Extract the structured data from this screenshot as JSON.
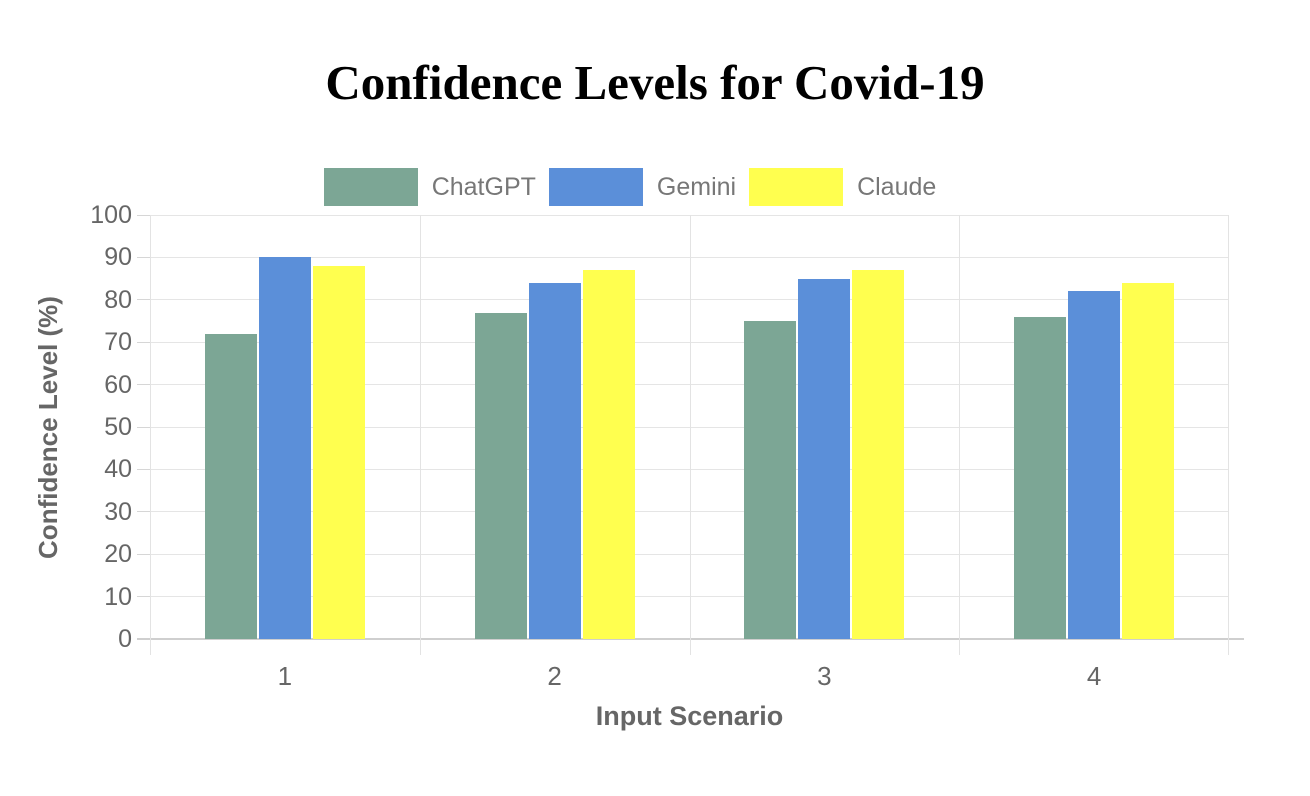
{
  "page": {
    "background": "#ffffff"
  },
  "chart_data": {
    "type": "bar",
    "title": "Confidence Levels for Covid-19",
    "xlabel": "Input Scenario",
    "ylabel": "Confidence Level (%)",
    "categories": [
      "1",
      "2",
      "3",
      "4"
    ],
    "series": [
      {
        "name": "ChatGPT",
        "color": "#7ca695",
        "values": [
          72,
          77,
          75,
          76
        ]
      },
      {
        "name": "Gemini",
        "color": "#5b8fd9",
        "values": [
          90,
          84,
          85,
          82
        ]
      },
      {
        "name": "Claude",
        "color": "#ffff4f",
        "values": [
          88,
          87,
          87,
          84
        ]
      }
    ],
    "ylim": [
      0,
      100
    ],
    "yticks": [
      0,
      10,
      20,
      30,
      40,
      50,
      60,
      70,
      80,
      90,
      100
    ],
    "grid": true,
    "legend_position": "top"
  },
  "colors": {
    "grid": "#e5e5e5",
    "axis_line": "#cfcfcf",
    "tick_label": "#666666",
    "axis_title": "#666666",
    "legend_label": "#777777",
    "title": "#000000"
  }
}
